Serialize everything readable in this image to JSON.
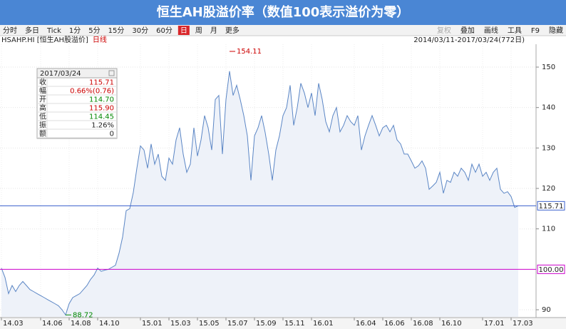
{
  "title": "恒生AH股溢价率（数值100表示溢价为零）",
  "toolbar": {
    "left": [
      "分时",
      "多日",
      "Tick",
      "1分",
      "5分",
      "15分",
      "30分",
      "60分",
      "日",
      "周",
      "月",
      "更多"
    ],
    "active": 8,
    "right": [
      "复权",
      "叠加",
      "画线",
      "工具",
      "F9",
      "隐藏"
    ],
    "disabled": 0
  },
  "header": {
    "symbol": "HSAHP.HI [恒生AH股溢价]",
    "period": "日线",
    "range": "2014/03/11-2017/03/24(772日)"
  },
  "info_box": {
    "date": "2017/03/24",
    "rows": [
      {
        "label": "收",
        "value": "115.71",
        "color": "#cc0000"
      },
      {
        "label": "幅",
        "value": "0.66%(0.76)",
        "color": "#cc0000"
      },
      {
        "label": "开",
        "value": "114.70",
        "color": "#008800"
      },
      {
        "label": "高",
        "value": "115.90",
        "color": "#cc0000"
      },
      {
        "label": "低",
        "value": "114.45",
        "color": "#008800"
      },
      {
        "label": "振",
        "value": "1.26%",
        "color": "#222222"
      },
      {
        "label": "额",
        "value": "0",
        "color": "#222222"
      }
    ]
  },
  "chart_data": {
    "type": "line",
    "categories": [
      "14.03",
      null,
      null,
      null,
      null,
      null,
      null,
      null,
      null,
      null,
      null,
      "14.06",
      null,
      null,
      null,
      null,
      null,
      null,
      null,
      "14.08",
      null,
      null,
      null,
      null,
      null,
      null,
      null,
      "14.10",
      null,
      null,
      null,
      null,
      null,
      null,
      null,
      null,
      null,
      null,
      null,
      "15.01",
      null,
      null,
      null,
      null,
      null,
      null,
      null,
      "15.03",
      null,
      null,
      null,
      null,
      null,
      null,
      null,
      "15.05",
      null,
      null,
      null,
      null,
      null,
      null,
      null,
      "15.07",
      null,
      null,
      null,
      null,
      null,
      null,
      null,
      "15.09",
      null,
      null,
      null,
      null,
      null,
      null,
      null,
      "15.11",
      null,
      null,
      null,
      null,
      null,
      null,
      null,
      "16.01",
      null,
      null,
      null,
      null,
      null,
      null,
      null,
      null,
      null,
      null,
      null,
      "16.04",
      null,
      null,
      null,
      null,
      null,
      null,
      null,
      "16.06",
      null,
      null,
      null,
      null,
      null,
      null,
      null,
      "16.08",
      null,
      null,
      null,
      null,
      null,
      null,
      null,
      "16.10",
      null,
      null,
      null,
      null,
      null,
      null,
      null,
      null,
      null,
      null,
      null,
      "17.01",
      null,
      null,
      null,
      null,
      null,
      null,
      null,
      "17.03",
      null,
      null
    ],
    "series": [
      {
        "name": "HSAHP.HI",
        "color": "#5b86c5",
        "values": [
          100.3,
          98,
          94,
          96,
          94.5,
          96,
          97,
          96,
          95,
          94.5,
          94,
          93.5,
          93,
          92.5,
          92,
          91.5,
          91,
          90,
          88.72,
          91.5,
          93,
          93.5,
          94,
          95,
          96,
          97.5,
          98.6,
          100.3,
          99.5,
          99.8,
          100,
          100.5,
          101,
          104,
          108,
          114.5,
          115,
          119,
          125,
          130.5,
          129.5,
          125,
          131,
          126,
          128.5,
          123,
          122,
          127.5,
          126,
          132,
          135,
          128.5,
          124,
          126,
          135,
          128,
          132,
          138,
          135,
          129.5,
          142,
          143,
          128.5,
          142,
          149,
          143,
          145.5,
          142,
          138,
          133,
          122,
          133,
          135,
          138,
          133.8,
          128.5,
          122,
          129.5,
          133,
          138,
          140,
          145.5,
          135.6,
          140,
          146,
          143.6,
          140,
          143.6,
          138,
          146,
          142,
          136.5,
          134,
          138,
          140,
          134,
          135.6,
          138,
          136.5,
          135.6,
          138,
          129.5,
          133,
          135.6,
          138,
          135.6,
          133,
          135,
          135.6,
          134,
          135.6,
          132,
          131,
          128.5,
          128.5,
          126.8,
          125,
          125.6,
          126.8,
          125,
          119.8,
          120.6,
          121.5,
          124,
          118.8,
          122,
          121.5,
          124,
          123,
          125,
          124,
          122,
          126,
          124,
          126,
          123,
          124,
          122,
          124,
          125,
          119.8,
          118.8,
          119.2,
          118,
          115.3,
          115.71
        ]
      }
    ],
    "ylim": [
      88.24,
      155.65
    ],
    "yticks": [
      90,
      110,
      120,
      130,
      140,
      150
    ],
    "grid": true,
    "area_color": "#eef2f9",
    "reference_lines": [
      {
        "value": 115.71,
        "label": "115.71",
        "color": "#3a5fcd"
      },
      {
        "value": 100,
        "label": "100.00",
        "color": "#cc00cc"
      }
    ],
    "annotations": [
      {
        "text": "154.11",
        "value": 154.11,
        "color": "#cc0000"
      },
      {
        "text": "88.72",
        "value": 88.72,
        "color": "#008800"
      }
    ]
  }
}
